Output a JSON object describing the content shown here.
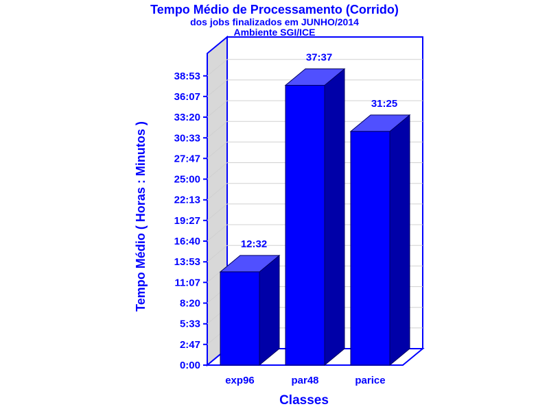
{
  "chart_data": {
    "type": "bar",
    "title": "Tempo Médio de Processamento (Corrido)",
    "subtitle": "dos jobs finalizados em JUNHO/2014",
    "subtitle2": "Ambiente SGI/ICE",
    "xlabel": "Classes",
    "ylabel": "Tempo Médio ( Horas : Minutos )",
    "categories": [
      "exp96",
      "par48",
      "parice"
    ],
    "values": [
      752,
      2257,
      1885
    ],
    "value_labels": [
      "12:32",
      "37:37",
      "31:25"
    ],
    "ylim": [
      0,
      2514
    ],
    "yticks": [
      0,
      167,
      333,
      500,
      667,
      833,
      1000,
      1167,
      1333,
      1500,
      1667,
      1833,
      2000,
      2167,
      2333
    ],
    "ytick_labels": [
      "0:00",
      "2:47",
      "5:33",
      "8:20",
      "11:07",
      "13:53",
      "16:40",
      "19:27",
      "22:13",
      "25:00",
      "27:47",
      "30:33",
      "33:20",
      "36:07",
      "38:53"
    ],
    "value_unit": "minutes",
    "grid": true,
    "three_d": true,
    "colors": {
      "text": "#0000ff",
      "bar_front": "#0000ff",
      "bar_top": "#5050ff",
      "bar_side": "#0000a8",
      "axis": "#0000ff",
      "back_wall": "#d8d8d8",
      "grid": "#d0d0d0"
    }
  }
}
